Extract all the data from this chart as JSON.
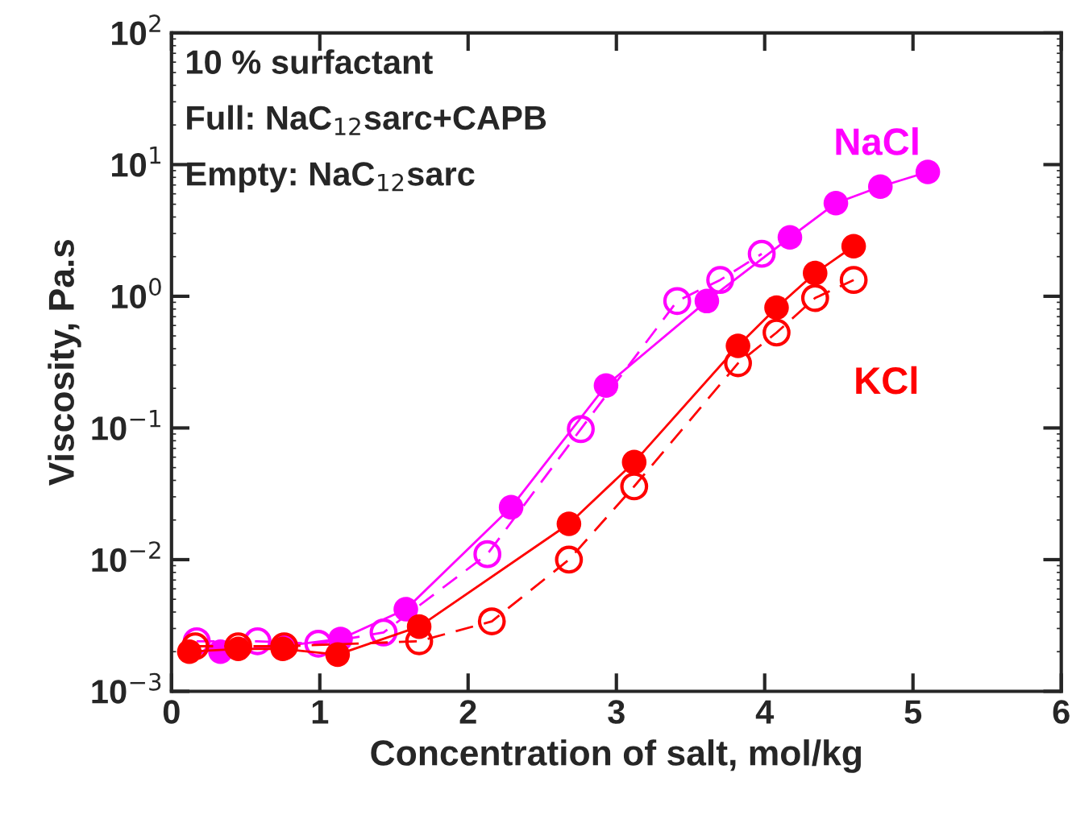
{
  "chart_data": {
    "type": "line",
    "xlabel": "Concentration of salt, mol/kg",
    "ylabel": "Viscosity, Pa.s",
    "log": "y",
    "xlim": [
      0,
      6
    ],
    "xticks": [
      0,
      1,
      2,
      3,
      4,
      5,
      6
    ],
    "ylim": [
      0.001,
      100
    ],
    "yticks": [
      {
        "value": 0.001,
        "label": "10$^{−3}$"
      },
      {
        "value": 0.01,
        "label": "10$^{−2}$"
      },
      {
        "value": 0.1,
        "label": "10$^{−1}$"
      },
      {
        "value": 1,
        "label": "10$^{0}$"
      },
      {
        "value": 10,
        "label": "10$^{1}$"
      },
      {
        "value": 100,
        "label": "10$^{2}$"
      }
    ],
    "grid": false,
    "marker": "circle",
    "series": [
      {
        "name": "NaCl",
        "color": "#ff00ff",
        "line_style": "solid",
        "x": [
          0.33,
          0.75,
          1.14,
          1.58,
          2.29,
          2.93,
          3.61,
          4.17,
          4.48,
          4.78,
          5.1
        ],
        "values": [
          0.002,
          0.0022,
          0.0025,
          0.0042,
          0.025,
          0.21,
          0.92,
          2.8,
          5.1,
          6.8,
          8.8
        ]
      },
      {
        "color": "#ff00ff",
        "line_style": "dashed",
        "x": [
          0.17,
          0.58,
          0.99,
          1.43,
          2.13,
          2.76,
          3.41,
          3.7,
          3.98
        ],
        "values": [
          0.0024,
          0.0024,
          0.0023,
          0.0028,
          0.011,
          0.098,
          0.92,
          1.33,
          2.1
        ]
      },
      {
        "name": "KCl",
        "color": "#ff0000",
        "line_style": "solid",
        "x": [
          0.12,
          0.45,
          0.75,
          1.12,
          1.67,
          2.68,
          3.12,
          3.82,
          4.08,
          4.34,
          4.6
        ],
        "values": [
          0.002,
          0.0021,
          0.0021,
          0.0019,
          0.0031,
          0.0187,
          0.055,
          0.42,
          0.82,
          1.5,
          2.4
        ]
      },
      {
        "color": "#ff0000",
        "line_style": "dashed",
        "x": [
          0.16,
          0.45,
          0.76,
          1.67,
          2.16,
          2.68,
          3.12,
          3.82,
          4.08,
          4.34,
          4.6
        ],
        "values": [
          0.0022,
          0.0022,
          0.0022,
          0.0024,
          0.0034,
          0.01,
          0.036,
          0.31,
          0.53,
          0.97,
          1.33
        ]
      }
    ],
    "annotations": [
      "10 % surfactant",
      "Full: NaC$_{12}$sarc+CAPB",
      "Empty: NaC$_{12}$sarc"
    ]
  }
}
